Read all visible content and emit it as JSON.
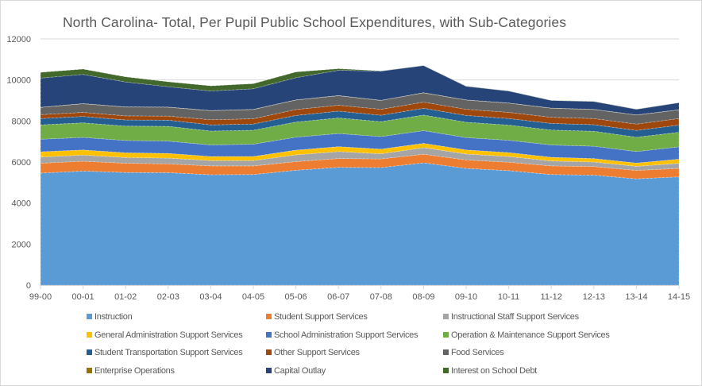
{
  "chart_data": {
    "type": "area",
    "stacked": true,
    "title": "North Carolina- Total, Per Pupil Public School Expenditures, with Sub-Categories",
    "xlabel": "",
    "ylabel": "",
    "ylim": [
      0,
      12000
    ],
    "yticks": [
      0,
      2000,
      4000,
      6000,
      8000,
      10000,
      12000
    ],
    "grid": true,
    "legend_position": "bottom",
    "categories": [
      "99-00",
      "00-01",
      "01-02",
      "02-03",
      "03-04",
      "04-05",
      "05-06",
      "06-07",
      "07-08",
      "08-09",
      "09-10",
      "10-11",
      "11-12",
      "12-13",
      "13-14",
      "14-15"
    ],
    "series": [
      {
        "name": "Instruction",
        "color": "#5b9bd5",
        "values": [
          5460,
          5560,
          5490,
          5480,
          5380,
          5390,
          5600,
          5740,
          5730,
          5960,
          5690,
          5580,
          5390,
          5360,
          5180,
          5280
        ]
      },
      {
        "name": "Student Support Services",
        "color": "#ed7d31",
        "values": [
          480,
          480,
          450,
          430,
          430,
          420,
          420,
          430,
          420,
          420,
          410,
          410,
          420,
          420,
          410,
          410
        ]
      },
      {
        "name": "Instructional Staff Support Services",
        "color": "#a5a5a5",
        "values": [
          300,
          300,
          280,
          280,
          260,
          260,
          330,
          340,
          250,
          320,
          290,
          280,
          240,
          220,
          200,
          250
        ]
      },
      {
        "name": "General Administration Support Services",
        "color": "#ffc000",
        "values": [
          260,
          250,
          230,
          230,
          200,
          200,
          230,
          240,
          230,
          210,
          200,
          190,
          180,
          170,
          160,
          200
        ]
      },
      {
        "name": "School Administration Support Services",
        "color": "#4472c4",
        "values": [
          610,
          610,
          600,
          600,
          560,
          600,
          630,
          640,
          610,
          620,
          600,
          600,
          600,
          600,
          560,
          600
        ]
      },
      {
        "name": "Operation & Maintenance Support Services",
        "color": "#70ad47",
        "values": [
          700,
          710,
          700,
          720,
          680,
          680,
          740,
          760,
          730,
          760,
          750,
          740,
          730,
          730,
          700,
          710
        ]
      },
      {
        "name": "Student Transportation Support Services",
        "color": "#255e91",
        "values": [
          310,
          310,
          300,
          300,
          300,
          300,
          320,
          330,
          310,
          330,
          330,
          320,
          320,
          320,
          330,
          350
        ]
      },
      {
        "name": "Other Support Services",
        "color": "#9e480e",
        "values": [
          190,
          200,
          200,
          200,
          250,
          260,
          290,
          290,
          290,
          300,
          300,
          300,
          300,
          300,
          310,
          320
        ]
      },
      {
        "name": "Food Services",
        "color": "#636363",
        "values": [
          350,
          420,
          430,
          430,
          440,
          450,
          460,
          460,
          430,
          450,
          450,
          450,
          440,
          440,
          440,
          420
        ]
      },
      {
        "name": "Enterprise Operations",
        "color": "#997300",
        "values": [
          10,
          10,
          10,
          10,
          10,
          10,
          10,
          10,
          10,
          10,
          10,
          10,
          10,
          10,
          10,
          10
        ]
      },
      {
        "name": "Capital Outlay",
        "color": "#264478",
        "values": [
          1420,
          1420,
          1210,
          990,
          950,
          1000,
          1080,
          1230,
          1420,
          1320,
          660,
          580,
          370,
          380,
          270,
          340
        ]
      },
      {
        "name": "Interest on School Debt",
        "color": "#43682b",
        "values": [
          280,
          260,
          250,
          240,
          250,
          250,
          280,
          80,
          10,
          10,
          10,
          10,
          10,
          10,
          10,
          10
        ]
      }
    ]
  }
}
